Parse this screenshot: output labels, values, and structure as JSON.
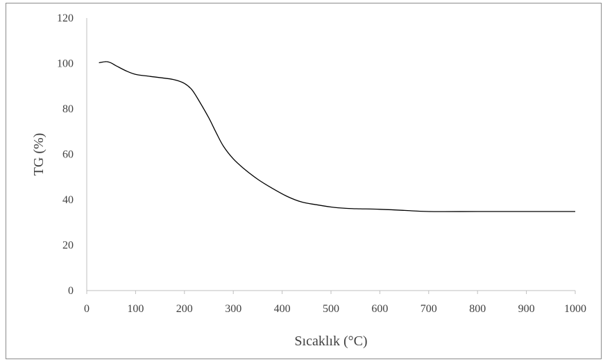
{
  "chart_data": {
    "type": "line",
    "title": "",
    "xlabel": "Sıcaklık (°C)",
    "ylabel": "TG (%)",
    "xlim": [
      0,
      1000
    ],
    "ylim": [
      0,
      120
    ],
    "x_ticks": [
      "0",
      "100",
      "200",
      "300",
      "400",
      "500",
      "600",
      "700",
      "800",
      "900",
      "1000"
    ],
    "y_ticks": [
      "0",
      "20",
      "40",
      "60",
      "80",
      "100",
      "120"
    ],
    "grid": false,
    "legend": "none",
    "line_color": "#000000",
    "series": [
      {
        "x": [
          25,
          40,
          50,
          60,
          80,
          100,
          130,
          160,
          180,
          200,
          215,
          230,
          250,
          265,
          280,
          300,
          320,
          350,
          380,
          410,
          440,
          470,
          500,
          530,
          560,
          600,
          650,
          700,
          800,
          900,
          1000
        ],
        "values": [
          100.3,
          100.8,
          100.2,
          99.0,
          96.8,
          95.2,
          94.3,
          93.5,
          92.8,
          91.2,
          88.5,
          83.5,
          76.0,
          69.5,
          63.5,
          58.0,
          54.0,
          49.0,
          45.0,
          41.5,
          39.0,
          37.8,
          36.8,
          36.2,
          36.0,
          35.8,
          35.3,
          34.8,
          34.8,
          34.8,
          34.8
        ]
      }
    ]
  }
}
